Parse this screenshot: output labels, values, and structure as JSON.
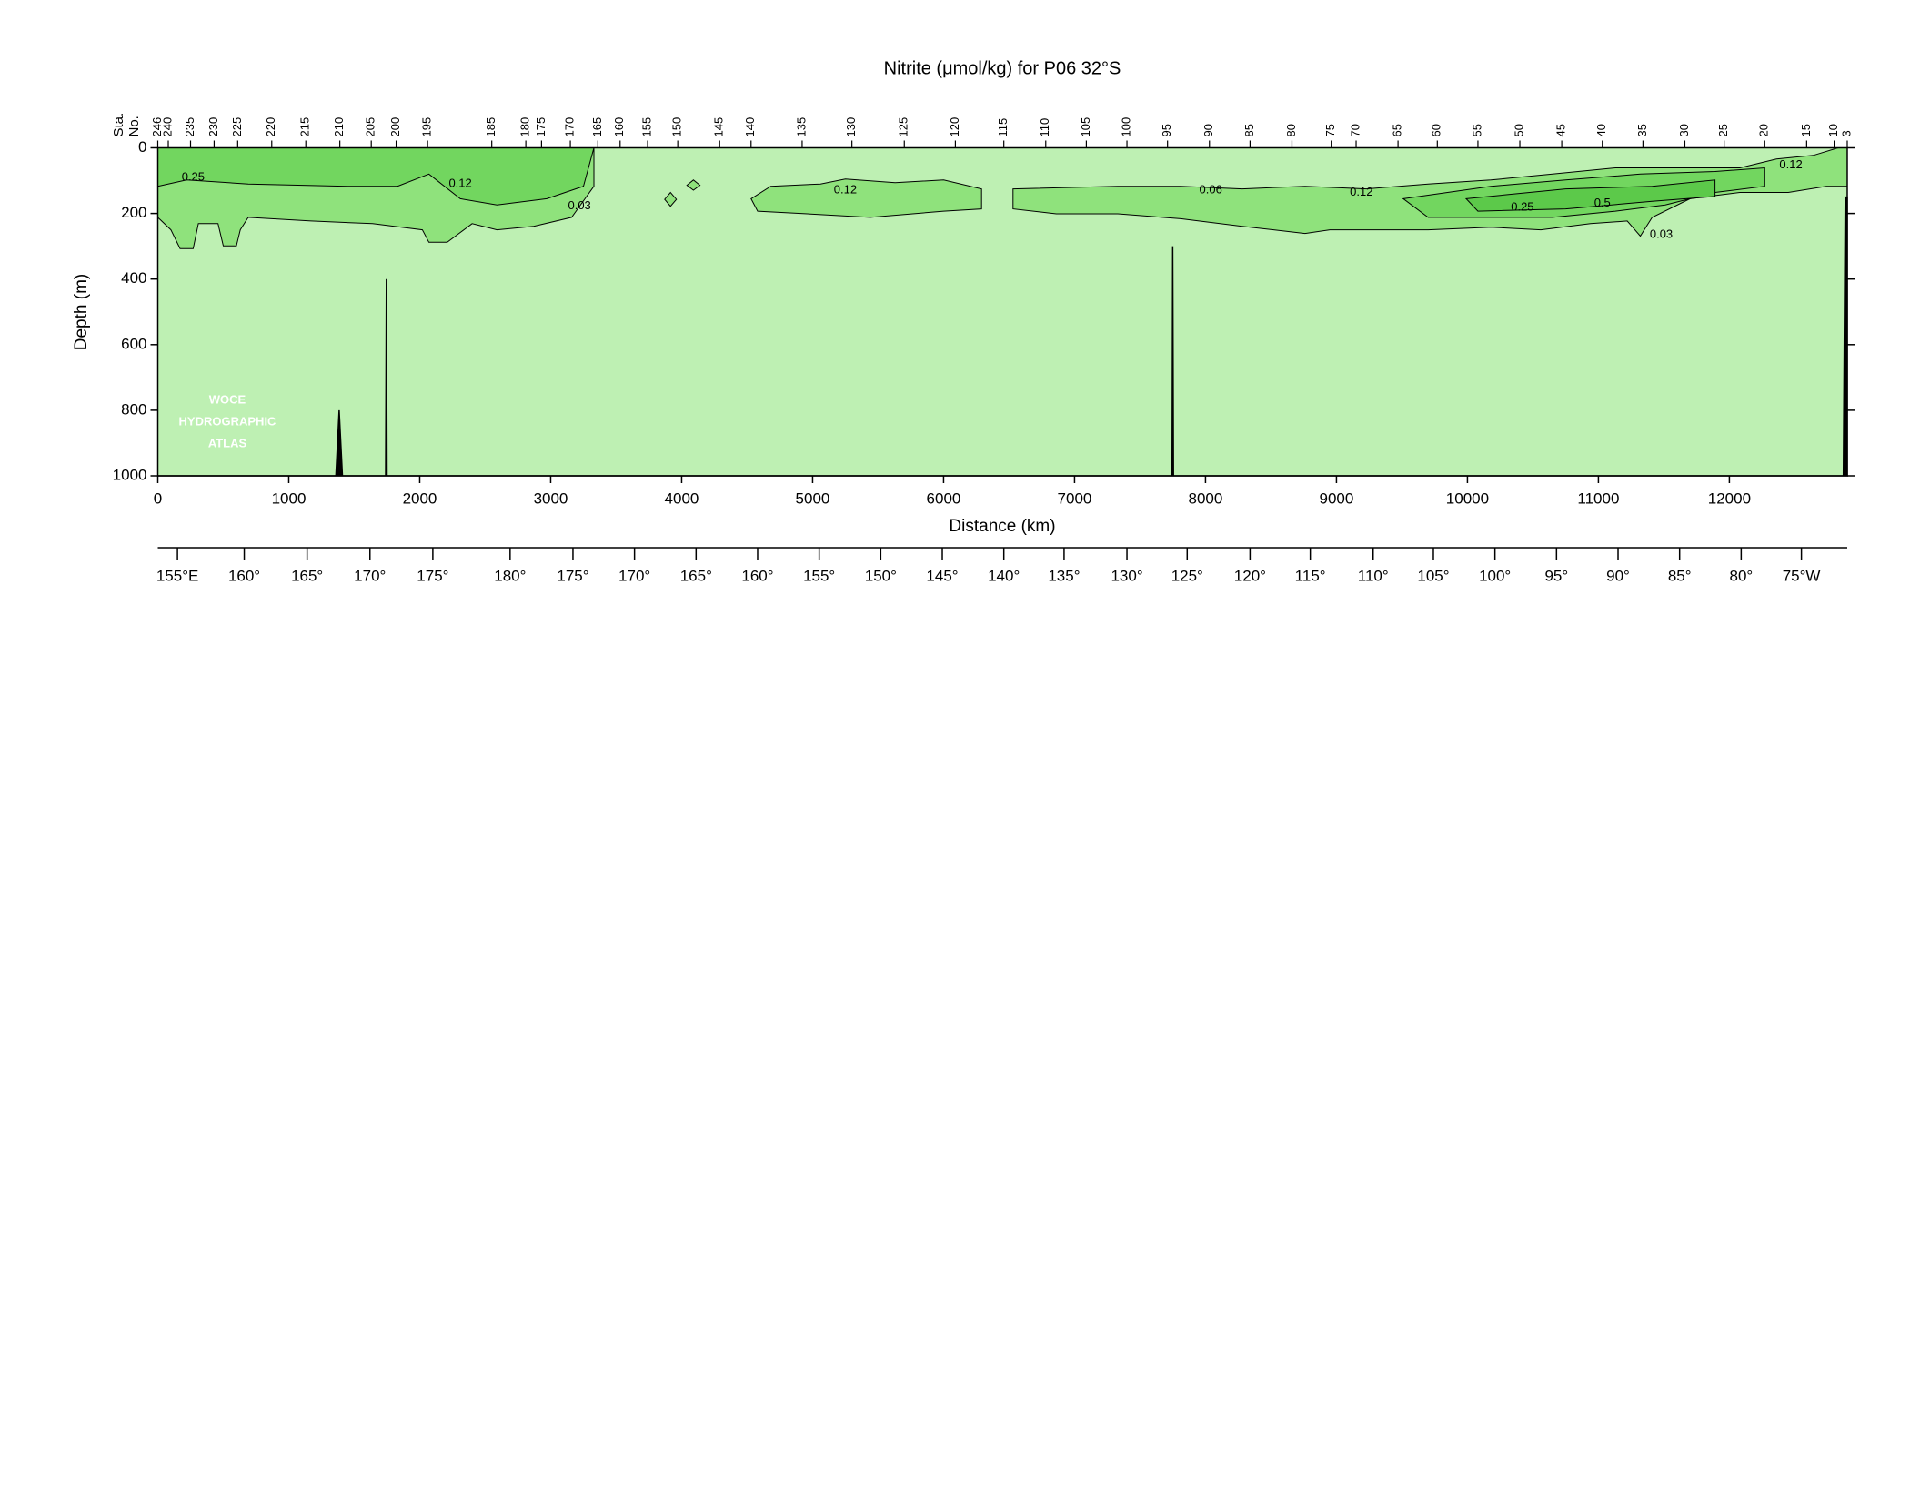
{
  "chart_data": {
    "type": "contour",
    "title": "Nitrite (μmol/kg) for P06 32°S",
    "x_label": "Distance (km)",
    "y_label": "Depth (m)",
    "xlim": [
      0,
      12900
    ],
    "xticks": [
      0,
      1000,
      2000,
      3000,
      4000,
      5000,
      6000,
      7000,
      8000,
      9000,
      10000,
      11000,
      12000
    ],
    "ylim": [
      0,
      1000
    ],
    "y_inverted": true,
    "yticks": [
      0,
      200,
      400,
      600,
      800,
      1000
    ],
    "background_color": "#bef0b3",
    "levels": [
      0.03,
      0.12,
      0.25
    ],
    "level_colors": [
      "#8fe27c",
      "#72d65f",
      "#5cc94a"
    ],
    "regions": [
      {
        "level": 0.03,
        "x": [
          0,
          3330,
          3330,
          3160,
          2870,
          2590,
          2400,
          2210,
          2070,
          2020,
          1640,
          1170,
          690,
          630,
          600,
          500,
          460,
          310,
          270,
          170,
          100,
          0
        ],
        "depth": [
          0,
          0,
          117,
          212,
          239,
          250,
          231,
          288,
          288,
          250,
          231,
          223,
          212,
          250,
          299,
          299,
          231,
          231,
          307,
          307,
          250,
          212
        ]
      },
      {
        "level": 0.03,
        "x": [
          4530,
          4680,
          5060,
          5250,
          5630,
          6000,
          6290,
          6290,
          6000,
          5440,
          4960,
          4580
        ],
        "depth": [
          155,
          117,
          110,
          95,
          106,
          98,
          125,
          186,
          193,
          212,
          201,
          193
        ]
      },
      {
        "level": 0.03,
        "x": [
          6530,
          7330,
          7810,
          8280,
          8760,
          9230,
          9700,
          10180,
          10650,
          11130,
          11600,
          12080,
          12360,
          12640,
          12830,
          12900,
          12900,
          12740,
          12450,
          12080,
          11700,
          11410,
          11320,
          11220,
          10940,
          10560,
          10180,
          9700,
          9230,
          8950,
          8760,
          8280,
          7810,
          7330,
          6860,
          6530
        ],
        "depth": [
          125,
          117,
          117,
          125,
          117,
          125,
          110,
          98,
          80,
          61,
          61,
          61,
          34,
          23,
          0,
          0,
          117,
          117,
          136,
          136,
          155,
          212,
          269,
          223,
          231,
          250,
          242,
          250,
          250,
          250,
          261,
          239,
          216,
          201,
          201,
          186
        ]
      },
      {
        "level": 0.03,
        "x": [
          3870,
          3915,
          3960,
          3915
        ],
        "depth": [
          157,
          136,
          157,
          178
        ]
      },
      {
        "level": 0.03,
        "x": [
          4040,
          4090,
          4140,
          4090
        ],
        "depth": [
          114,
          98,
          114,
          129
        ]
      },
      {
        "level": 0.12,
        "x": [
          0,
          3330,
          3250,
          2970,
          2590,
          2310,
          2070,
          1830,
          1450,
          690,
          220,
          0
        ],
        "depth": [
          0,
          0,
          117,
          155,
          174,
          155,
          80,
          117,
          117,
          110,
          98,
          117
        ]
      },
      {
        "level": 0.12,
        "x": [
          9510,
          10180,
          10750,
          11320,
          11890,
          12270,
          12270,
          11890,
          11510,
          11130,
          10650,
          10180,
          9700
        ],
        "depth": [
          155,
          117,
          98,
          80,
          72,
          61,
          117,
          136,
          174,
          193,
          212,
          212,
          212
        ]
      },
      {
        "level": 0.25,
        "x": [
          9990,
          10750,
          11410,
          11890,
          11890,
          11410,
          10750,
          10080
        ],
        "depth": [
          155,
          125,
          117,
          98,
          148,
          163,
          186,
          193
        ]
      }
    ],
    "contour_labels": [
      {
        "x": 270,
        "depth": 91,
        "value": 0.25
      },
      {
        "x": 2310,
        "depth": 110,
        "value": 0.12
      },
      {
        "x": 3220,
        "depth": 178,
        "value": 0.03
      },
      {
        "x": 5250,
        "depth": 129,
        "value": 0.12
      },
      {
        "x": 8040,
        "depth": 129,
        "value": 0.06
      },
      {
        "x": 9190,
        "depth": 136,
        "value": 0.12
      },
      {
        "x": 10420,
        "depth": 182,
        "value": 0.25
      },
      {
        "x": 11030,
        "depth": 170,
        "value": 0.5
      },
      {
        "x": 11480,
        "depth": 265,
        "value": 0.03
      },
      {
        "x": 12470,
        "depth": 53,
        "value": 0.12
      }
    ],
    "bathymetry": {
      "x": [
        0,
        1360,
        1385,
        1410,
        1740,
        1745,
        1750,
        7745,
        7750,
        7755,
        12870,
        12885,
        12900
      ],
      "depth": [
        1000,
        1000,
        800,
        1000,
        1000,
        400,
        1000,
        1000,
        300,
        1000,
        1000,
        150,
        150
      ]
    },
    "station_label_lines": [
      "Sta.",
      "No."
    ],
    "stations": [
      {
        "value": 0,
        "label": "246"
      },
      {
        "value": 80,
        "label": "240"
      },
      {
        "value": 250,
        "label": "235"
      },
      {
        "value": 430,
        "label": "230"
      },
      {
        "value": 610,
        "label": "225"
      },
      {
        "value": 870,
        "label": "220"
      },
      {
        "value": 1130,
        "label": "215"
      },
      {
        "value": 1390,
        "label": "210"
      },
      {
        "value": 1630,
        "label": "205"
      },
      {
        "value": 1820,
        "label": "200"
      },
      {
        "value": 2060,
        "label": "195"
      },
      {
        "value": 2550,
        "label": "185"
      },
      {
        "value": 2810,
        "label": "180"
      },
      {
        "value": 2930,
        "label": "175"
      },
      {
        "value": 3150,
        "label": "170"
      },
      {
        "value": 3360,
        "label": "165"
      },
      {
        "value": 3530,
        "label": "160"
      },
      {
        "value": 3740,
        "label": "155"
      },
      {
        "value": 3970,
        "label": "150"
      },
      {
        "value": 4290,
        "label": "145"
      },
      {
        "value": 4530,
        "label": "140"
      },
      {
        "value": 4920,
        "label": "135"
      },
      {
        "value": 5300,
        "label": "130"
      },
      {
        "value": 5700,
        "label": "125"
      },
      {
        "value": 6090,
        "label": "120"
      },
      {
        "value": 6460,
        "label": "115"
      },
      {
        "value": 6780,
        "label": "110"
      },
      {
        "value": 7090,
        "label": "105"
      },
      {
        "value": 7400,
        "label": "100"
      },
      {
        "value": 7710,
        "label": "95"
      },
      {
        "value": 8030,
        "label": "90"
      },
      {
        "value": 8340,
        "label": "85"
      },
      {
        "value": 8660,
        "label": "80"
      },
      {
        "value": 8960,
        "label": "75"
      },
      {
        "value": 9150,
        "label": "70"
      },
      {
        "value": 9470,
        "label": "65"
      },
      {
        "value": 9770,
        "label": "60"
      },
      {
        "value": 10080,
        "label": "55"
      },
      {
        "value": 10400,
        "label": "50"
      },
      {
        "value": 10720,
        "label": "45"
      },
      {
        "value": 11030,
        "label": "40"
      },
      {
        "value": 11340,
        "label": "35"
      },
      {
        "value": 11660,
        "label": "30"
      },
      {
        "value": 11960,
        "label": "25"
      },
      {
        "value": 12270,
        "label": "20"
      },
      {
        "value": 12590,
        "label": "15"
      },
      {
        "value": 12800,
        "label": "10"
      },
      {
        "value": 12900,
        "label": "3"
      }
    ],
    "longitude_ticks": [
      {
        "value": 150,
        "label": "155°E"
      },
      {
        "value": 660,
        "label": "160°"
      },
      {
        "value": 1140,
        "label": "165°"
      },
      {
        "value": 1620,
        "label": "170°"
      },
      {
        "value": 2100,
        "label": "175°"
      },
      {
        "value": 2690,
        "label": "180°"
      },
      {
        "value": 3170,
        "label": "175°"
      },
      {
        "value": 3640,
        "label": "170°"
      },
      {
        "value": 4110,
        "label": "165°"
      },
      {
        "value": 4580,
        "label": "160°"
      },
      {
        "value": 5050,
        "label": "155°"
      },
      {
        "value": 5520,
        "label": "150°"
      },
      {
        "value": 5990,
        "label": "145°"
      },
      {
        "value": 6460,
        "label": "140°"
      },
      {
        "value": 6920,
        "label": "135°"
      },
      {
        "value": 7400,
        "label": "130°"
      },
      {
        "value": 7860,
        "label": "125°"
      },
      {
        "value": 8340,
        "label": "120°"
      },
      {
        "value": 8800,
        "label": "115°"
      },
      {
        "value": 9280,
        "label": "110°"
      },
      {
        "value": 9740,
        "label": "105°"
      },
      {
        "value": 10210,
        "label": "100°"
      },
      {
        "value": 10680,
        "label": "95°"
      },
      {
        "value": 11150,
        "label": "90°"
      },
      {
        "value": 11620,
        "label": "85°"
      },
      {
        "value": 12090,
        "label": "80°"
      },
      {
        "value": 12550,
        "label": "75°W"
      }
    ],
    "watermark": [
      "WOCE",
      "HYDROGRAPHIC",
      "ATLAS"
    ]
  }
}
